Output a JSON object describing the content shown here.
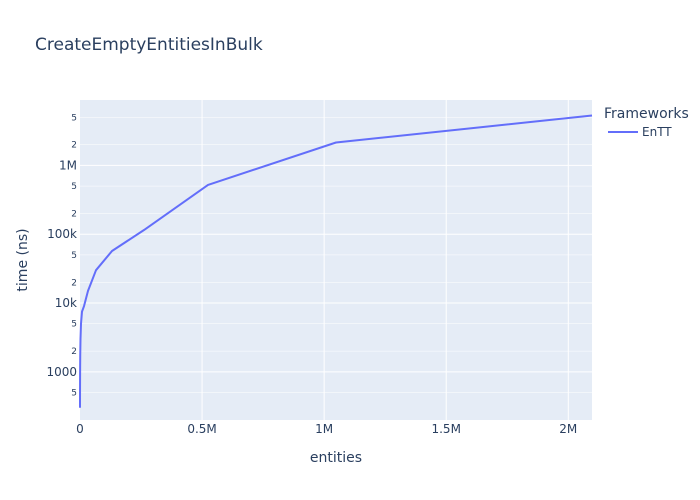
{
  "chart_data": {
    "type": "line",
    "title": "CreateEmptyEntitiesInBulk",
    "xlabel": "entities",
    "ylabel": "time (ns)",
    "x_scale": "linear",
    "y_scale": "log",
    "xlim": [
      0,
      2097152
    ],
    "ylim_log10": [
      2.3,
      6.95
    ],
    "x_ticks": [
      {
        "value": 0,
        "label": "0"
      },
      {
        "value": 500000,
        "label": "0.5M"
      },
      {
        "value": 1000000,
        "label": "1M"
      },
      {
        "value": 1500000,
        "label": "1.5M"
      },
      {
        "value": 2000000,
        "label": "2M"
      }
    ],
    "y_major_ticks": [
      {
        "value": 1000,
        "label": "1000"
      },
      {
        "value": 10000,
        "label": "10k"
      },
      {
        "value": 100000,
        "label": "100k"
      },
      {
        "value": 1000000,
        "label": "1M"
      }
    ],
    "y_minor_ticks": [
      {
        "value": 500,
        "label": "5"
      },
      {
        "value": 2000,
        "label": "2"
      },
      {
        "value": 5000,
        "label": "5"
      },
      {
        "value": 20000,
        "label": "2"
      },
      {
        "value": 50000,
        "label": "5"
      },
      {
        "value": 200000,
        "label": "2"
      },
      {
        "value": 500000,
        "label": "5"
      },
      {
        "value": 2000000,
        "label": "2"
      },
      {
        "value": 5000000,
        "label": "5"
      }
    ],
    "legend_title": "Frameworks",
    "legend_placement": "right",
    "grid": true,
    "series": [
      {
        "name": "EnTT",
        "color": "#636efa",
        "x": [
          1,
          2,
          4,
          8,
          16,
          32,
          64,
          128,
          256,
          512,
          1024,
          2048,
          4096,
          8192,
          16384,
          32768,
          65536,
          131072,
          262144,
          524288,
          1048576,
          2097152
        ],
        "y": [
          300,
          310,
          320,
          330,
          350,
          380,
          420,
          520,
          700,
          1100,
          1800,
          3000,
          5000,
          7500,
          9000,
          15000,
          30000,
          57000,
          115000,
          520000,
          2150000,
          5300000
        ]
      }
    ]
  }
}
